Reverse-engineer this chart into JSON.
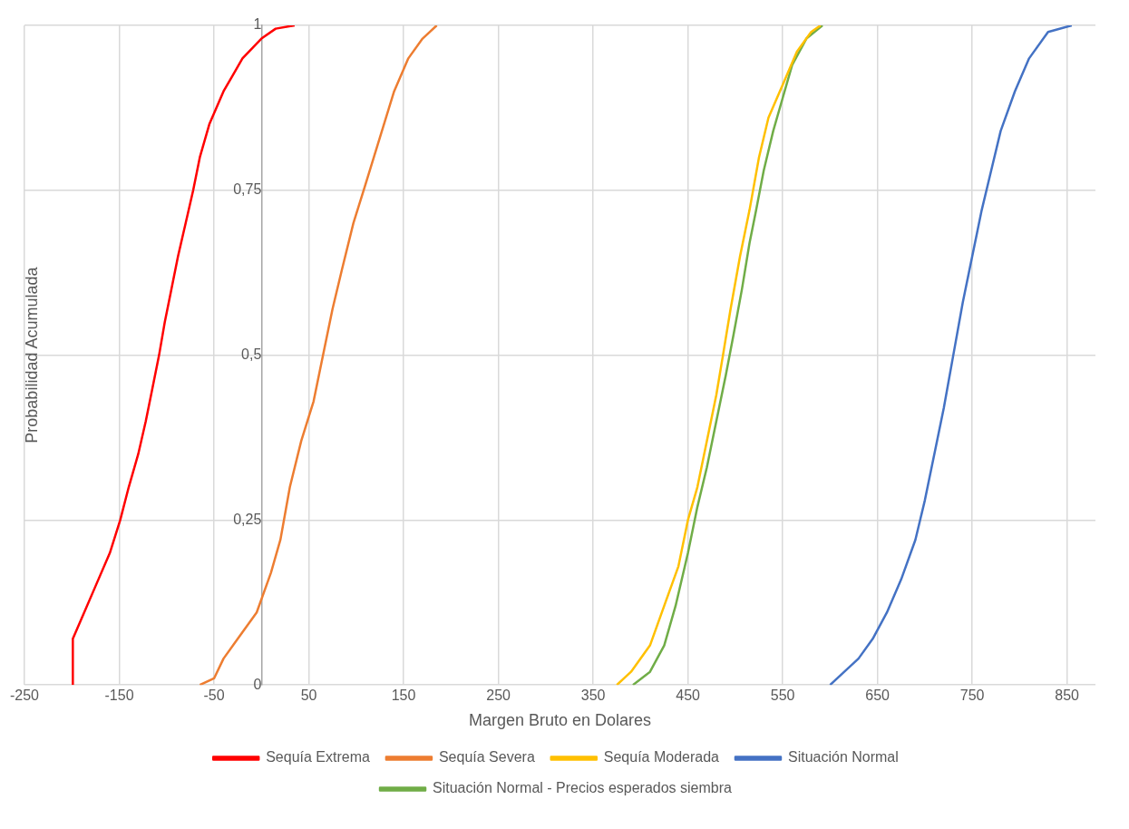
{
  "chart_data": {
    "type": "line",
    "xlabel": "Margen Bruto en Dolares",
    "ylabel": "Probabilidad Acumulada",
    "xlim": [
      -250,
      880
    ],
    "xticks": [
      -250,
      -150,
      -50,
      50,
      150,
      250,
      350,
      450,
      550,
      650,
      750,
      850
    ],
    "ylim": [
      0,
      1
    ],
    "yticks": [
      0,
      {
        "value": 0.25,
        "label": "0,25"
      },
      {
        "value": 0.5,
        "label": "0,5"
      },
      {
        "value": 0.75,
        "label": "0,75"
      },
      1
    ],
    "grid": true,
    "legend": "bottom",
    "marker": "none",
    "line_style": "solid",
    "series": [
      {
        "name": "Sequía Extrema",
        "color": "#ff0000",
        "x": [
          -199,
          -199,
          -190,
          -175,
          -160,
          -149,
          -140,
          -130,
          -122,
          -115,
          -108,
          -102,
          -95,
          -88,
          -80,
          -72,
          -65,
          -55,
          -40,
          -20,
          0,
          15,
          35
        ],
        "values": [
          0,
          0.07,
          0.1,
          0.15,
          0.2,
          0.25,
          0.3,
          0.35,
          0.4,
          0.45,
          0.5,
          0.55,
          0.6,
          0.65,
          0.7,
          0.75,
          0.8,
          0.85,
          0.9,
          0.95,
          0.98,
          0.995,
          1
        ]
      },
      {
        "name": "Sequía Severa",
        "color": "#ed7d31",
        "x": [
          -65,
          -50,
          -40,
          -25,
          -5,
          10,
          20,
          30,
          42,
          55,
          65,
          75,
          85,
          97,
          110,
          125,
          140,
          155,
          170,
          185
        ],
        "values": [
          0,
          0.01,
          0.04,
          0.07,
          0.11,
          0.17,
          0.22,
          0.3,
          0.37,
          0.43,
          0.5,
          0.57,
          0.63,
          0.7,
          0.76,
          0.83,
          0.9,
          0.95,
          0.98,
          1
        ]
      },
      {
        "name": "Sequía Moderada",
        "color": "#ffc000",
        "x": [
          375,
          390,
          410,
          425,
          440,
          450,
          460,
          470,
          480,
          487,
          495,
          505,
          515,
          525,
          535,
          550,
          565,
          580,
          590
        ],
        "values": [
          0,
          0.02,
          0.06,
          0.12,
          0.18,
          0.25,
          0.3,
          0.37,
          0.44,
          0.5,
          0.57,
          0.65,
          0.72,
          0.8,
          0.86,
          0.91,
          0.96,
          0.99,
          1
        ]
      },
      {
        "name": "Situación Normal",
        "color": "#4472c4",
        "x": [
          600,
          615,
          630,
          645,
          660,
          675,
          690,
          700,
          710,
          720,
          730,
          740,
          750,
          760,
          770,
          780,
          795,
          810,
          830,
          855
        ],
        "values": [
          0,
          0.02,
          0.04,
          0.07,
          0.11,
          0.16,
          0.22,
          0.28,
          0.35,
          0.42,
          0.5,
          0.58,
          0.65,
          0.72,
          0.78,
          0.84,
          0.9,
          0.95,
          0.99,
          1
        ]
      },
      {
        "name": "Situación Normal - Precios esperados siembra",
        "color": "#70ad47",
        "x": [
          392,
          410,
          425,
          437,
          450,
          460,
          470,
          480,
          490,
          498,
          507,
          515,
          522,
          530,
          540,
          550,
          560,
          575,
          592
        ],
        "values": [
          0,
          0.02,
          0.06,
          0.12,
          0.2,
          0.27,
          0.33,
          0.4,
          0.47,
          0.53,
          0.6,
          0.67,
          0.72,
          0.78,
          0.84,
          0.89,
          0.94,
          0.98,
          1
        ]
      }
    ]
  }
}
